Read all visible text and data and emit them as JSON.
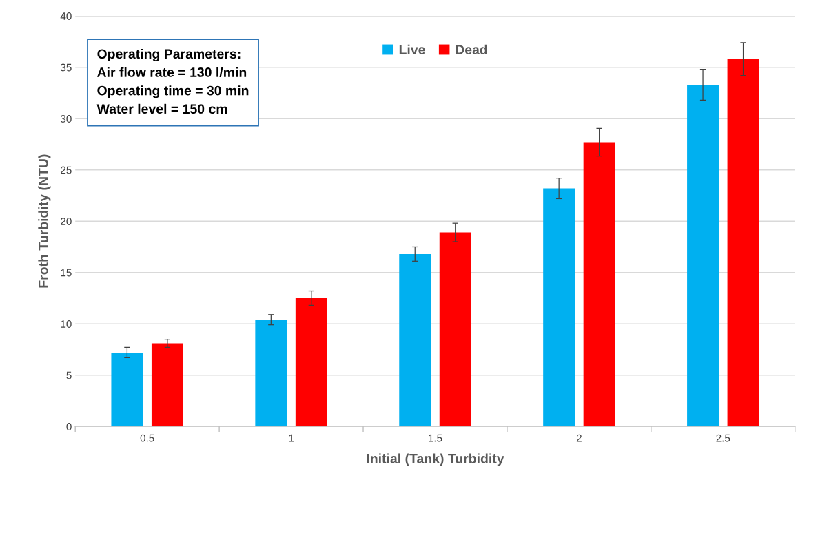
{
  "chart_data": {
    "type": "bar",
    "xlabel": "Initial (Tank) Turbidity",
    "ylabel": "Froth Turbidity (NTU)",
    "categories": [
      "0.5",
      "1",
      "1.5",
      "2",
      "2.5"
    ],
    "series": [
      {
        "name": "Live",
        "color": "#00b0f0",
        "values": [
          7.2,
          10.4,
          16.8,
          23.2,
          33.3
        ],
        "errors": [
          0.5,
          0.5,
          0.7,
          1.0,
          1.5
        ]
      },
      {
        "name": "Dead",
        "color": "#ff0000",
        "values": [
          8.1,
          12.5,
          18.9,
          27.7,
          35.8
        ],
        "errors": [
          0.4,
          0.7,
          0.9,
          1.35,
          1.6
        ]
      }
    ],
    "ylim": [
      0,
      40
    ],
    "yticks": [
      0,
      5,
      10,
      15,
      20,
      25,
      30,
      35,
      40
    ],
    "grid": "y",
    "legend": "top",
    "annotations": [
      "Operating Parameters:\nAir flow rate = 130 l/min\nOperating time = 30 min\nWater level = 150 cm"
    ]
  }
}
